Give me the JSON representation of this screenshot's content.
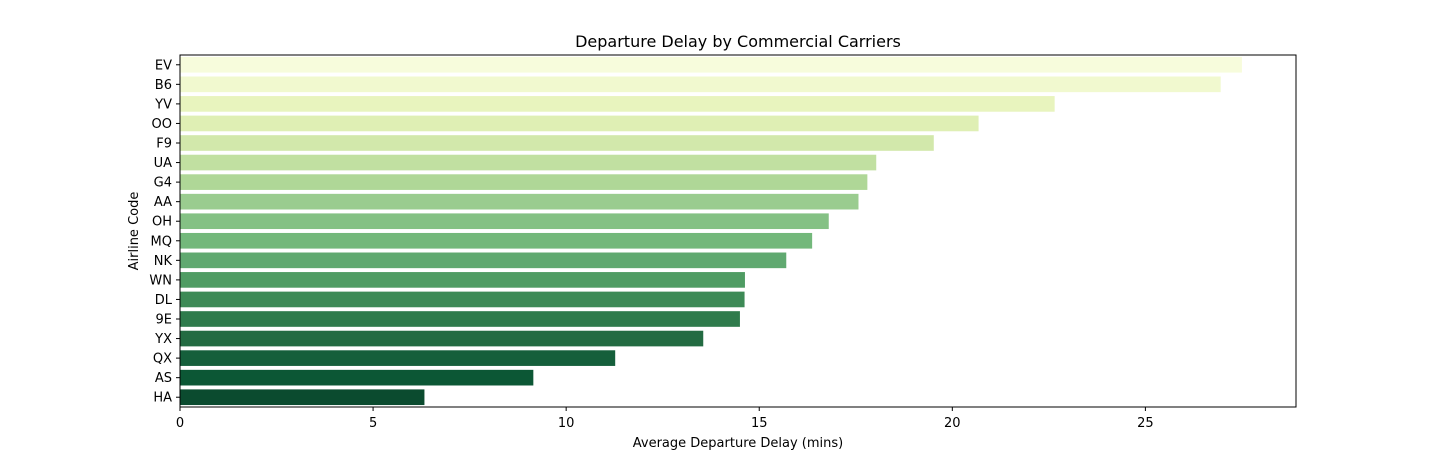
{
  "chart_data": {
    "type": "bar",
    "orientation": "horizontal",
    "title": "Departure Delay by Commercial Carriers",
    "xlabel": "Average Departure Delay (mins)",
    "ylabel": "Airline Code",
    "xlim": [
      0,
      28.9
    ],
    "xticks": [
      0,
      5,
      10,
      15,
      20,
      25
    ],
    "grid": false,
    "categories": [
      "EV",
      "B6",
      "YV",
      "OO",
      "F9",
      "UA",
      "G4",
      "AA",
      "OH",
      "MQ",
      "NK",
      "WN",
      "DL",
      "9E",
      "YX",
      "QX",
      "AS",
      "HA"
    ],
    "values": [
      27.5,
      26.95,
      22.65,
      20.68,
      19.52,
      18.03,
      17.8,
      17.57,
      16.8,
      16.37,
      15.7,
      14.63,
      14.62,
      14.5,
      13.55,
      11.27,
      9.15,
      6.33
    ],
    "colors": [
      "#f7fcdc",
      "#f1f9cf",
      "#e8f4be",
      "#dfefb4",
      "#d2e8ab",
      "#c1e0a1",
      "#afd797",
      "#9acc8f",
      "#84c184",
      "#73b87b",
      "#60a970",
      "#4f9c63",
      "#3d8a56",
      "#2f7b4c",
      "#236b42",
      "#155f3b",
      "#0c5735",
      "#0b4b2f"
    ]
  }
}
